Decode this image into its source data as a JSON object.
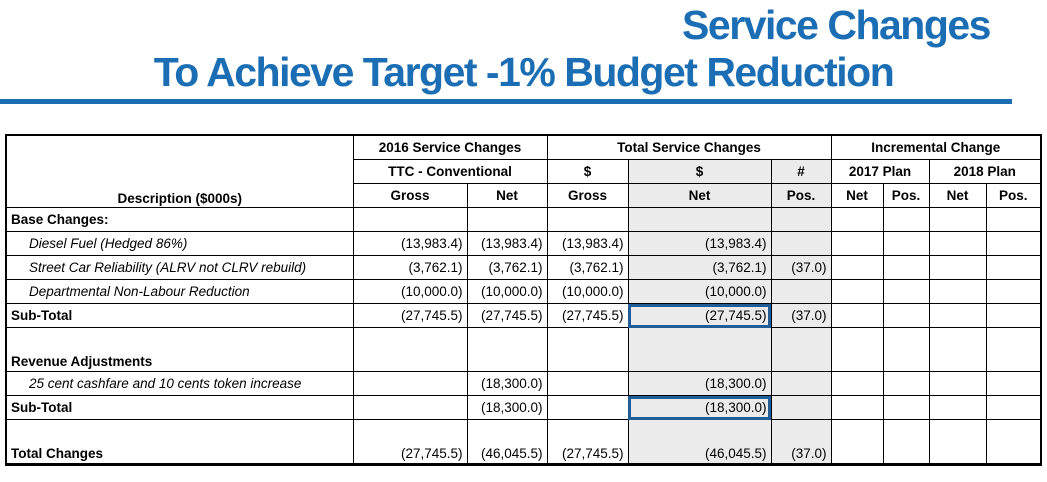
{
  "title": {
    "line1": "Service Changes",
    "line2": "To Achieve Target -1% Budget Reduction"
  },
  "colors": {
    "accent": "#1C6EB4",
    "selection": "#1F5C99",
    "shade": "#EBEBEB"
  },
  "table": {
    "description_header": "Description ($000s)",
    "group_headers": {
      "y2016": "2016 Service Changes",
      "total": "Total Service Changes",
      "incremental": "Incremental Change"
    },
    "sub_headers": {
      "ttc": "TTC - Conventional",
      "total_gross_sign": "$",
      "total_net_sign": "$",
      "total_pos_sign": "#",
      "plan_2017": "2017 Plan",
      "plan_2018": "2018 Plan"
    },
    "col_headers": [
      "Gross",
      "Net",
      "Gross",
      "Net",
      "Pos.",
      "Net",
      "Pos.",
      "Net",
      "Pos."
    ],
    "rows": [
      {
        "label": "Base Changes:",
        "emphasis": "bold",
        "values": [
          "",
          "",
          "",
          "",
          "",
          "",
          "",
          "",
          ""
        ]
      },
      {
        "label": "Diesel Fuel (Hedged 86%)",
        "emphasis": "italic",
        "values": [
          "(13,983.4)",
          "(13,983.4)",
          "(13,983.4)",
          "(13,983.4)",
          "",
          "",
          "",
          "",
          ""
        ]
      },
      {
        "label": "Street Car Reliability (ALRV not CLRV rebuild)",
        "emphasis": "italic",
        "values": [
          "(3,762.1)",
          "(3,762.1)",
          "(3,762.1)",
          "(3,762.1)",
          "(37.0)",
          "",
          "",
          "",
          ""
        ]
      },
      {
        "label": "Departmental Non-Labour Reduction",
        "emphasis": "italic",
        "values": [
          "(10,000.0)",
          "(10,000.0)",
          "(10,000.0)",
          "(10,000.0)",
          "",
          "",
          "",
          "",
          ""
        ]
      },
      {
        "label": "Sub-Total",
        "emphasis": "bold",
        "highlight_col": 3,
        "values": [
          "(27,745.5)",
          "(27,745.5)",
          "(27,745.5)",
          "(27,745.5)",
          "(37.0)",
          "",
          "",
          "",
          ""
        ]
      },
      {
        "label": "Revenue Adjustments",
        "emphasis": "bold",
        "gap_above": true,
        "values": [
          "",
          "",
          "",
          "",
          "",
          "",
          "",
          "",
          ""
        ]
      },
      {
        "label": "25 cent cashfare and 10 cents token increase",
        "emphasis": "italic",
        "values": [
          "",
          "(18,300.0)",
          "",
          "(18,300.0)",
          "",
          "",
          "",
          "",
          ""
        ]
      },
      {
        "label": "Sub-Total",
        "emphasis": "bold",
        "highlight_col": 3,
        "values": [
          "",
          "(18,300.0)",
          "",
          "(18,300.0)",
          "",
          "",
          "",
          "",
          ""
        ]
      },
      {
        "label": "Total Changes",
        "emphasis": "bold",
        "gap_above": true,
        "values": [
          "(27,745.5)",
          "(46,045.5)",
          "(27,745.5)",
          "(46,045.5)",
          "(37.0)",
          "",
          "",
          "",
          ""
        ]
      }
    ]
  }
}
